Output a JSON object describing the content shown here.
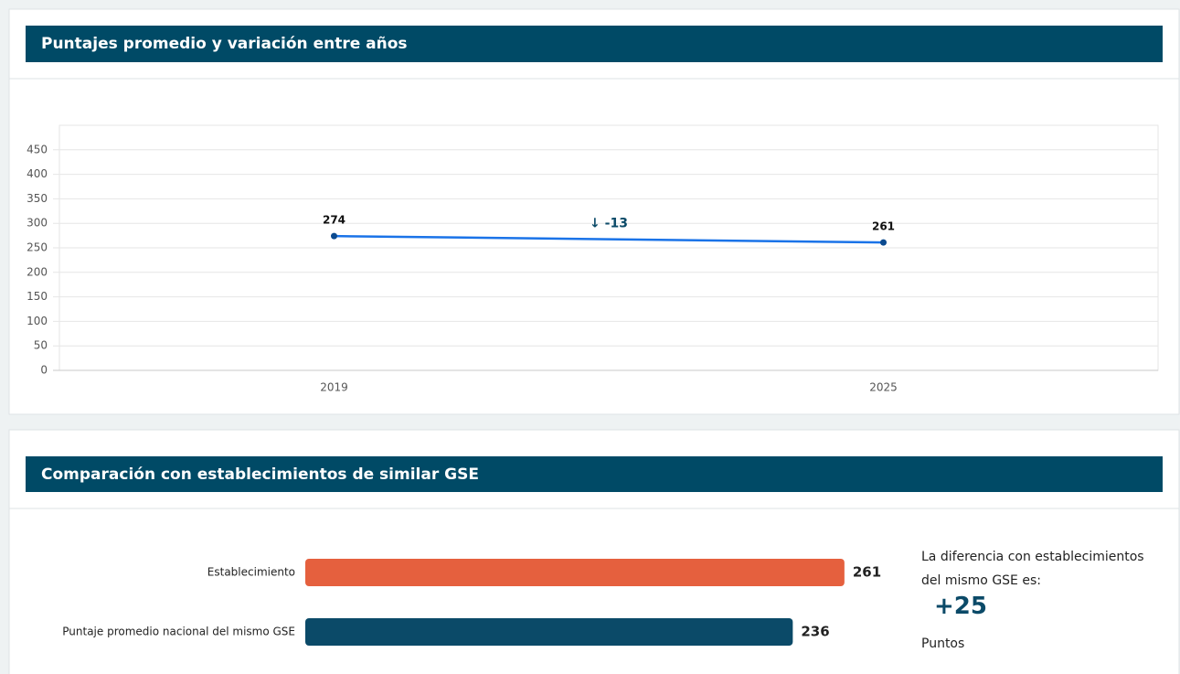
{
  "chart_data": [
    {
      "type": "line",
      "title": "Puntajes promedio y variación entre años",
      "categories": [
        "2019",
        "2025"
      ],
      "values": [
        274,
        261
      ],
      "color": "#1a73e8",
      "annotation": "↓ -13",
      "ylim": [
        0,
        500
      ],
      "yticks": [
        0,
        50,
        100,
        150,
        200,
        250,
        300,
        350,
        400,
        450
      ],
      "grid": true
    },
    {
      "type": "barh",
      "title": "Comparación con establecimientos de similar GSE",
      "categories": [
        "Establecimiento",
        "Puntaje promedio nacional del mismo GSE"
      ],
      "values": [
        261,
        236
      ],
      "colors": [
        "#e5603e",
        "#0b4a68"
      ],
      "note": {
        "text": "La diferencia con establecimientos del mismo GSE es:",
        "difference": "+25",
        "unit": "Puntos"
      }
    }
  ]
}
